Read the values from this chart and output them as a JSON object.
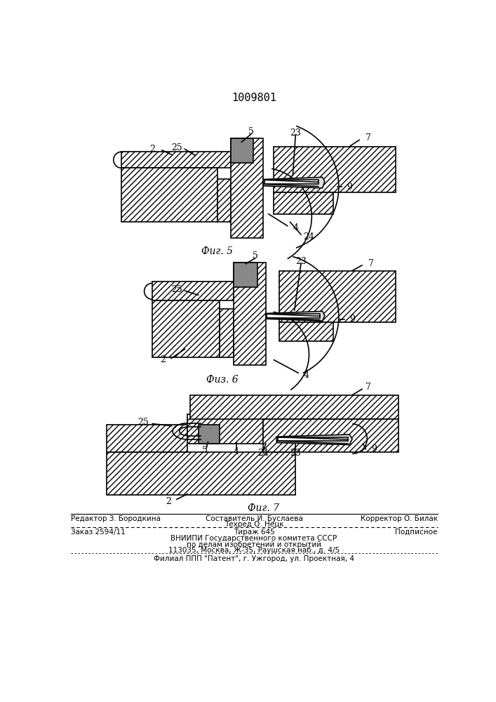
{
  "title": "1009801",
  "fig5_label": "Фиг. 5",
  "fig6_label": "Физ. 6",
  "fig7_label": "Фиг. 7",
  "lc": "#000000",
  "bg": "#ffffff",
  "hatch": "////",
  "dark_sq": "#888888",
  "lw": 1.2,
  "footer": {
    "editor": "Редактор З. Бородкина",
    "composer": "Составитель И. Буслаева",
    "techred": "Техред О. Нецк",
    "corrector": "Корректор О. Билак",
    "order": "Заказ 2594/11",
    "tirage": "Тираж 645",
    "subscription": "Подписное",
    "vnipi": "ВНИИПИ Государственного комитета СССР",
    "affairs": "по делам изобретений и открытий",
    "address": "113035, Москва, Ж-35, Раушская наб., д. 4/5",
    "filial": "Филиал ППП \"Патент\", г. Ужгород, ул. Проектная, 4"
  }
}
